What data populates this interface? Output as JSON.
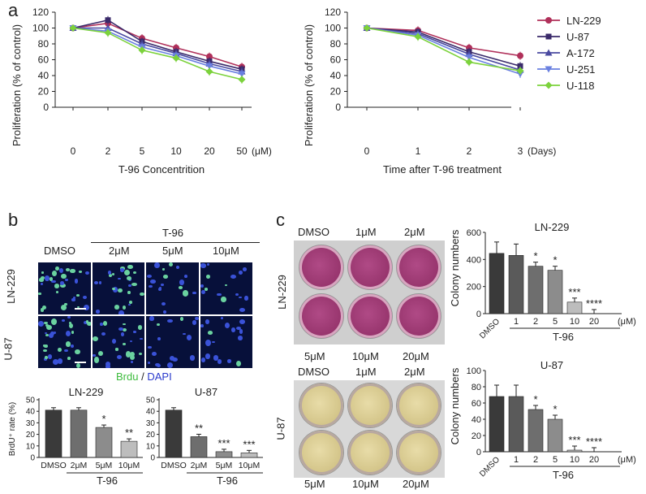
{
  "panel_letters": {
    "a": "a",
    "b": "b",
    "c": "c"
  },
  "panel_a": {
    "ylabel": "Proliferation (% of control)",
    "left_chart": {
      "xlabel": "T-96 Concentrition",
      "x_ticks": [
        "0",
        "2",
        "5",
        "10",
        "20",
        "50"
      ],
      "x_unit": "(μM)",
      "y_ticks": [
        "0",
        "20",
        "40",
        "60",
        "80",
        "100",
        "120"
      ]
    },
    "right_chart": {
      "xlabel": "Time after T-96 treatment",
      "x_ticks": [
        "0",
        "1",
        "2",
        "3"
      ],
      "x_unit": "(Days)",
      "y_ticks": [
        "0",
        "20",
        "40",
        "60",
        "80",
        "100",
        "120"
      ]
    },
    "legend": [
      "LN-229",
      "U-87",
      "A-172",
      "U-251",
      "U-118"
    ]
  },
  "panel_b": {
    "treatment_label": "T-96",
    "column_labels": [
      "DMSO",
      "2μM",
      "5μM",
      "10μM"
    ],
    "row_labels": [
      "LN-229",
      "U-87"
    ],
    "stain_brdu": "Brdu",
    "stain_sep": "/",
    "stain_dapi": "DAPI",
    "bar_ylabel": "BrdU⁺ rate (%)",
    "bar_y_ticks": [
      "0",
      "10",
      "20",
      "30",
      "40",
      "50"
    ],
    "bar_categories": [
      "DMSO",
      "2μM",
      "5μM",
      "10μM"
    ],
    "bar_group_label": "T-96",
    "bar_titles": [
      "LN-229",
      "U-87"
    ]
  },
  "panel_c": {
    "top_plate_top_labels": [
      "DMSO",
      "1μM",
      "2μM"
    ],
    "top_plate_bottom_labels": [
      "5μM",
      "10μM",
      "20μM"
    ],
    "bottom_plate_top_labels": [
      "DMSO",
      "1μM",
      "2μM"
    ],
    "bottom_plate_bottom_labels": [
      "5μM",
      "10μM",
      "20μM"
    ],
    "row_labels": [
      "LN-229",
      "U-87"
    ],
    "bar_ylabel": "Colony numbers",
    "bar_categories": [
      "DMSO",
      "1",
      "2",
      "5",
      "10",
      "20"
    ],
    "bar_unit": "(μM)",
    "bar_group_label": "T-96",
    "bar_titles": [
      "LN-229",
      "U-87"
    ],
    "top_y_ticks": [
      "0",
      "200",
      "400",
      "600"
    ],
    "bottom_y_ticks": [
      "0",
      "20",
      "40",
      "60",
      "80",
      "100"
    ]
  },
  "colors": {
    "LN-229": "#b0305a",
    "U-87": "#3a2a6a",
    "A-172": "#4a4aa0",
    "U-251": "#6a80e0",
    "U-118": "#7cd23c"
  },
  "chart_data": [
    {
      "type": "line",
      "x": [
        0,
        2,
        5,
        10,
        20,
        50
      ],
      "xlabel": "T-96 Concentrition",
      "ylabel": "Proliferation (% of control)",
      "ylim": [
        0,
        120
      ],
      "legend": "right",
      "series": [
        {
          "name": "LN-229",
          "values": [
            100,
            106,
            87,
            75,
            64,
            51
          ]
        },
        {
          "name": "U-87",
          "values": [
            100,
            110,
            83,
            70,
            58,
            48
          ]
        },
        {
          "name": "A-172",
          "values": [
            100,
            100,
            80,
            68,
            55,
            45
          ]
        },
        {
          "name": "U-251",
          "values": [
            100,
            96,
            76,
            65,
            52,
            42
          ]
        },
        {
          "name": "U-118",
          "values": [
            100,
            94,
            72,
            62,
            45,
            35
          ]
        }
      ]
    },
    {
      "type": "line",
      "x": [
        0,
        1,
        2,
        3
      ],
      "xlabel": "Time after T-96 treatment",
      "ylabel": "Proliferation (% of control)",
      "ylim": [
        0,
        120
      ],
      "series": [
        {
          "name": "LN-229",
          "values": [
            100,
            97,
            75,
            65
          ]
        },
        {
          "name": "U-87",
          "values": [
            100,
            95,
            70,
            52
          ]
        },
        {
          "name": "A-172",
          "values": [
            100,
            93,
            67,
            47
          ]
        },
        {
          "name": "U-251",
          "values": [
            100,
            91,
            63,
            42
          ]
        },
        {
          "name": "U-118",
          "values": [
            100,
            89,
            57,
            46
          ]
        }
      ]
    },
    {
      "type": "bar",
      "title": "LN-229",
      "ylabel": "BrdU⁺ rate (%)",
      "categories": [
        "DMSO",
        "2μM",
        "5μM",
        "10μM"
      ],
      "values": [
        41,
        41,
        26,
        14
      ],
      "significance": [
        "",
        "",
        "*",
        "**"
      ],
      "ylim": [
        0,
        50
      ]
    },
    {
      "type": "bar",
      "title": "U-87",
      "categories": [
        "DMSO",
        "2μM",
        "5μM",
        "10μM"
      ],
      "values": [
        41,
        18,
        5,
        4
      ],
      "significance": [
        "",
        "**",
        "***",
        "***"
      ],
      "ylim": [
        0,
        50
      ]
    },
    {
      "type": "bar",
      "title": "LN-229",
      "ylabel": "Colony numbers",
      "categories": [
        "DMSO",
        "1",
        "2",
        "5",
        "10",
        "20"
      ],
      "values": [
        445,
        430,
        350,
        320,
        85,
        0
      ],
      "significance": [
        "",
        "",
        "*",
        "*",
        "***",
        "****"
      ],
      "ylim": [
        0,
        600
      ]
    },
    {
      "type": "bar",
      "title": "U-87",
      "ylabel": "Colony numbers",
      "categories": [
        "DMSO",
        "1",
        "2",
        "5",
        "10",
        "20"
      ],
      "values": [
        68,
        68,
        52,
        40,
        2,
        0
      ],
      "significance": [
        "",
        "",
        "*",
        "*",
        "***",
        "****"
      ],
      "ylim": [
        0,
        100
      ]
    }
  ]
}
